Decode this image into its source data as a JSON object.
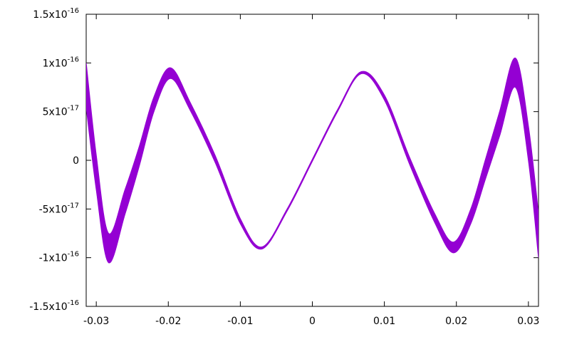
{
  "chart_data": {
    "type": "band",
    "color": "#9400d3",
    "x": [
      -0.0314,
      -0.03,
      -0.0283,
      -0.026,
      -0.024,
      -0.022,
      -0.0197,
      -0.017,
      -0.0135,
      -0.01,
      -0.007,
      -0.0035,
      0,
      0.0035,
      0.0068,
      0.01,
      0.0135,
      0.017,
      0.0196,
      0.022,
      0.024,
      0.026,
      0.0282,
      0.03,
      0.0314
    ],
    "upper": [
      1e-16,
      5e-18,
      -7.5e-17,
      -3e-17,
      1.5e-17,
      6.5e-17,
      9.5e-17,
      6e-17,
      5e-18,
      -6e-17,
      -8.9e-17,
      -5e-17,
      1e-18,
      5.2e-17,
      9.1e-17,
      6.7e-17,
      3e-18,
      -5.5e-17,
      -8.4e-17,
      -5e-17,
      0,
      5e-17,
      1.05e-16,
      3.5e-17,
      -5.5e-17
    ],
    "lower": [
      5.5e-17,
      -3e-17,
      -1.05e-16,
      -5.5e-17,
      -5e-18,
      5e-17,
      8.4e-17,
      5.2e-17,
      -2e-18,
      -6.5e-17,
      -9.1e-17,
      -5.2e-17,
      -1e-18,
      5e-17,
      8.9e-17,
      6.2e-17,
      -4e-18,
      -6.4e-17,
      -9.5e-17,
      -6.5e-17,
      -2e-17,
      2.5e-17,
      7.5e-17,
      0,
      -1e-16
    ],
    "xlim": [
      -0.0314,
      0.0314
    ],
    "ylim": [
      -1.5e-16,
      1.5e-16
    ],
    "xticks": [
      -0.03,
      -0.02,
      -0.01,
      0,
      0.01,
      0.02,
      0.03
    ],
    "yticks": [
      {
        "value": -1.5e-16,
        "label": "-1.5x10",
        "exponent": "-16"
      },
      {
        "value": -1e-16,
        "label": "-1x10",
        "exponent": "-16"
      },
      {
        "value": -5e-17,
        "label": "-5x10",
        "exponent": "-17"
      },
      0,
      {
        "value": 5e-17,
        "label": "5x10",
        "exponent": "-17"
      },
      {
        "value": 1e-16,
        "label": "1x10",
        "exponent": "-16"
      },
      {
        "value": 1.5e-16,
        "label": "1.5x10",
        "exponent": "-16"
      }
    ]
  }
}
